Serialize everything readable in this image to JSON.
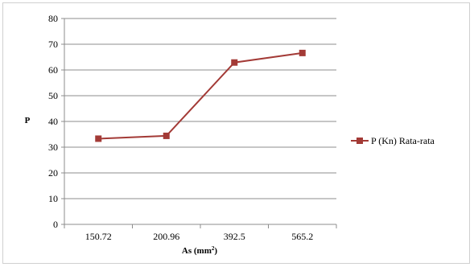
{
  "chart_data": {
    "type": "line",
    "categories": [
      "150.72",
      "200.96",
      "392.5",
      "565.2"
    ],
    "series": [
      {
        "name": "P (Kn) Rata-rata",
        "values": [
          33.3,
          34.4,
          62.9,
          66.6
        ],
        "color": "#a33a36"
      }
    ],
    "xlabel": "As (mm",
    "xlabel_sup": "2",
    "xlabel_close": ")",
    "ylabel": "P",
    "ylim": [
      0,
      80
    ],
    "yticks": [
      "0",
      "10",
      "20",
      "30",
      "40",
      "50",
      "60",
      "70",
      "80"
    ],
    "grid": "horizontal",
    "legend": "right",
    "gridline_color": "#8c8c8c"
  }
}
